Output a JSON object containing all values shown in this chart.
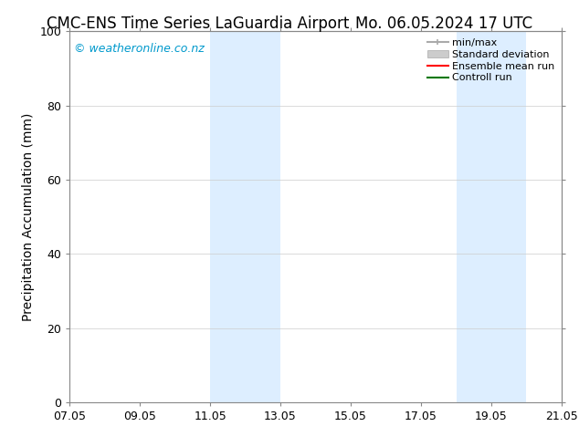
{
  "title_left": "CMC-ENS Time Series LaGuardia Airport",
  "title_right": "Mo. 06.05.2024 17 UTC",
  "ylabel": "Precipitation Accumulation (mm)",
  "watermark": "© weatheronline.co.nz",
  "watermark_color": "#0099cc",
  "ylim": [
    0,
    100
  ],
  "yticks": [
    0,
    20,
    40,
    60,
    80,
    100
  ],
  "xtick_labels": [
    "07.05",
    "09.05",
    "11.05",
    "13.05",
    "15.05",
    "17.05",
    "19.05",
    "21.05"
  ],
  "xtick_positions": [
    0,
    2,
    4,
    6,
    8,
    10,
    12,
    14
  ],
  "x_min": 0,
  "x_max": 14,
  "shaded_bands": [
    {
      "x_start": 4,
      "x_end": 6,
      "color": "#ddeeff",
      "alpha": 1.0
    },
    {
      "x_start": 11,
      "x_end": 13,
      "color": "#ddeeff",
      "alpha": 1.0
    }
  ],
  "background_color": "#ffffff",
  "legend_items": [
    {
      "label": "min/max",
      "type": "minmax",
      "color": "#aaaaaa",
      "linewidth": 1.5
    },
    {
      "label": "Standard deviation",
      "type": "patch",
      "color": "#cccccc",
      "edgecolor": "#aaaaaa"
    },
    {
      "label": "Ensemble mean run",
      "type": "line",
      "color": "#ff0000",
      "linewidth": 1.5
    },
    {
      "label": "Controll run",
      "type": "line",
      "color": "#007700",
      "linewidth": 1.5
    }
  ],
  "title_fontsize": 12,
  "axis_fontsize": 10,
  "tick_fontsize": 9,
  "watermark_fontsize": 9,
  "figsize": [
    6.34,
    4.9
  ],
  "dpi": 100
}
